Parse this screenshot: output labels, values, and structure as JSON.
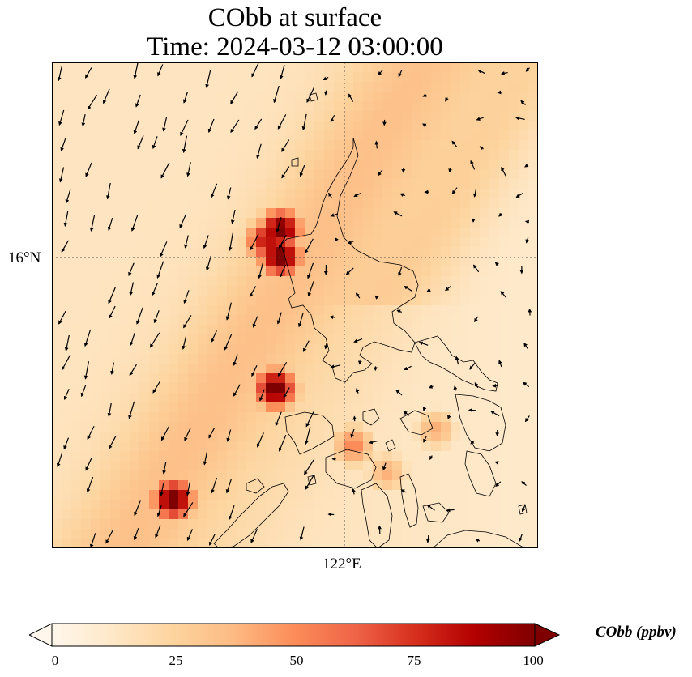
{
  "title": {
    "line1": "CObb at surface",
    "line2": "Time: 2024-03-12 03:00:00"
  },
  "map": {
    "lat_tick_label": "16°N",
    "lon_tick_label": "122°E",
    "colormap": "OrRd",
    "colormap_stops": [
      "#fff7ec",
      "#fee8c8",
      "#fdd49e",
      "#fdbb84",
      "#fc8d59",
      "#ef6548",
      "#d7301f",
      "#b30000",
      "#7f0000"
    ],
    "field_description_units": "ppbv",
    "hotspots": [
      {
        "lat": 16.9,
        "lon": 120.7,
        "value": 100
      },
      {
        "lat": 16.4,
        "lon": 120.7,
        "value": 100
      },
      {
        "lat": 16.7,
        "lon": 120.4,
        "value": 75
      },
      {
        "lat": 13.95,
        "lon": 120.6,
        "value": 100
      },
      {
        "lat": 11.9,
        "lon": 118.5,
        "value": 100
      },
      {
        "lat": 12.9,
        "lon": 122.2,
        "value": 50
      },
      {
        "lat": 12.4,
        "lon": 122.9,
        "value": 38
      },
      {
        "lat": 13.2,
        "lon": 123.9,
        "value": 40
      }
    ],
    "plume_band_value": 35,
    "background_value": 15
  },
  "colorbar": {
    "label": "CObb (ppbv)",
    "ticks": [
      "0",
      "25",
      "50",
      "75",
      "100"
    ],
    "min": 0,
    "max": 100,
    "extend": "both"
  }
}
